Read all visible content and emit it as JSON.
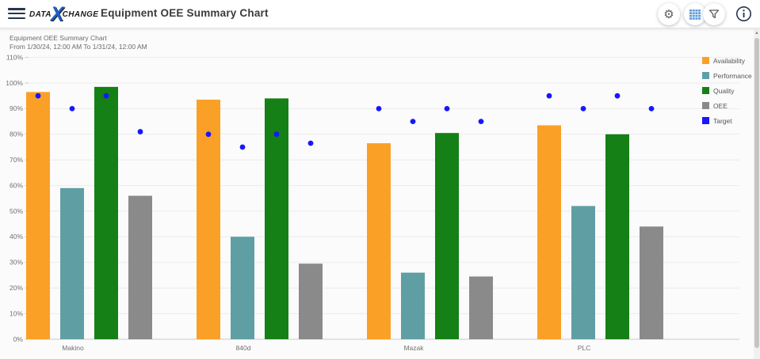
{
  "header": {
    "logo": {
      "part1": "DATA",
      "x": "X",
      "part2": "CHANGE"
    },
    "title": "Equipment OEE Summary Chart",
    "icons": {
      "menu": "hamburger-menu",
      "settings": "gear-icon",
      "grid": "grid-view-icon",
      "filter": "filter-funnel-icon",
      "info": "info-icon"
    },
    "colors": {
      "grid_icon": "#5b9ce0",
      "icon_gray": "#5c5c5c",
      "info_navy": "#27364e"
    }
  },
  "chart_header": {
    "title": "Equipment OEE Summary Chart",
    "subtitle": "From 1/30/24, 12:00 AM To 1/31/24, 12:00 AM"
  },
  "chart_data": {
    "type": "bar",
    "title": "Equipment OEE Summary Chart",
    "subtitle": "From 1/30/24, 12:00 AM To 1/31/24, 12:00 AM",
    "categories": [
      "Makino",
      "840d",
      "Mazak",
      "PLC"
    ],
    "series": [
      {
        "name": "Availability",
        "color": "#fba026",
        "values": [
          96.5,
          93.5,
          76.5,
          83.5
        ]
      },
      {
        "name": "Performance",
        "color": "#5f9fa4",
        "values": [
          59,
          40,
          26,
          52
        ]
      },
      {
        "name": "Quality",
        "color": "#158015",
        "values": [
          98.5,
          94,
          80.5,
          80
        ]
      },
      {
        "name": "OEE",
        "color": "#8a8a8a",
        "values": [
          56,
          29.5,
          24.5,
          44
        ]
      }
    ],
    "target_series": {
      "name": "Target",
      "color": "#1717ff",
      "values_by_category": [
        [
          95,
          90,
          95,
          81
        ],
        [
          80,
          75,
          80,
          76.5
        ],
        [
          90,
          85,
          90,
          85
        ],
        [
          95,
          90,
          95,
          90
        ]
      ]
    },
    "ylim": [
      0,
      110
    ],
    "ytick_step": 10,
    "ytick_suffix": "%",
    "grid": true,
    "legend_position": "right-top",
    "axis_colors": {
      "gridline": "#ebebeb",
      "axis_line": "#c9c9c9",
      "tick_label": "#707070"
    }
  }
}
